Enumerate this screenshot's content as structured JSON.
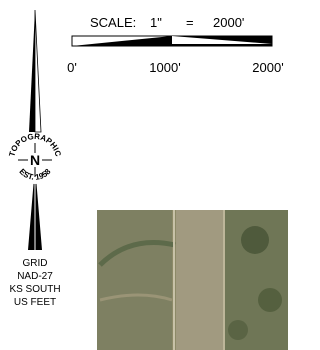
{
  "scale": {
    "label": "SCALE:",
    "inch": "1\"",
    "equals": "=",
    "distance": "2000'",
    "ticks": [
      "0'",
      "1000'",
      "2000'"
    ]
  },
  "compass": {
    "letter": "N",
    "top_text": "TOPOGRAPHIC",
    "bottom_text": "EST. 1958"
  },
  "projection": [
    "GRID",
    "NAD-27",
    "KS SOUTH",
    "US FEET"
  ]
}
